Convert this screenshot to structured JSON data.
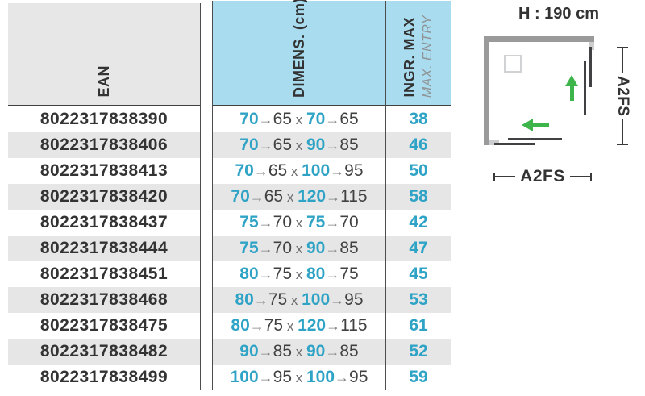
{
  "table": {
    "headers": {
      "ean": "EAN",
      "dimens": "DIMENS. (cm)",
      "ingr": "INGR. MAX",
      "ingr_sub": "MAX. ENTRY"
    },
    "arrow": "→",
    "separator": "x",
    "rows": [
      {
        "ean": "8022317838390",
        "w": "70",
        "w2": "65",
        "d": "70",
        "d2": "65",
        "max": "38"
      },
      {
        "ean": "8022317838406",
        "w": "70",
        "w2": "65",
        "d": "90",
        "d2": "85",
        "max": "46"
      },
      {
        "ean": "8022317838413",
        "w": "70",
        "w2": "65",
        "d": "100",
        "d2": "95",
        "max": "50"
      },
      {
        "ean": "8022317838420",
        "w": "70",
        "w2": "65",
        "d": "120",
        "d2": "115",
        "max": "58"
      },
      {
        "ean": "8022317838437",
        "w": "75",
        "w2": "70",
        "d": "75",
        "d2": "70",
        "max": "42"
      },
      {
        "ean": "8022317838444",
        "w": "75",
        "w2": "70",
        "d": "90",
        "d2": "85",
        "max": "47"
      },
      {
        "ean": "8022317838451",
        "w": "80",
        "w2": "75",
        "d": "80",
        "d2": "75",
        "max": "45"
      },
      {
        "ean": "8022317838468",
        "w": "80",
        "w2": "75",
        "d": "100",
        "d2": "95",
        "max": "53"
      },
      {
        "ean": "8022317838475",
        "w": "80",
        "w2": "75",
        "d": "120",
        "d2": "115",
        "max": "61"
      },
      {
        "ean": "8022317838482",
        "w": "90",
        "w2": "85",
        "d": "90",
        "d2": "85",
        "max": "52"
      },
      {
        "ean": "8022317838499",
        "w": "100",
        "w2": "95",
        "d": "100",
        "d2": "95",
        "max": "59"
      }
    ]
  },
  "diagram": {
    "height_label": "H : 190 cm",
    "width_label": "A2FS",
    "depth_label": "A2FS"
  },
  "colors": {
    "teal": "#2fa3c6",
    "header_blue": "#a9dcee",
    "stripe": "#e6e6e6",
    "green": "#3db54a"
  }
}
